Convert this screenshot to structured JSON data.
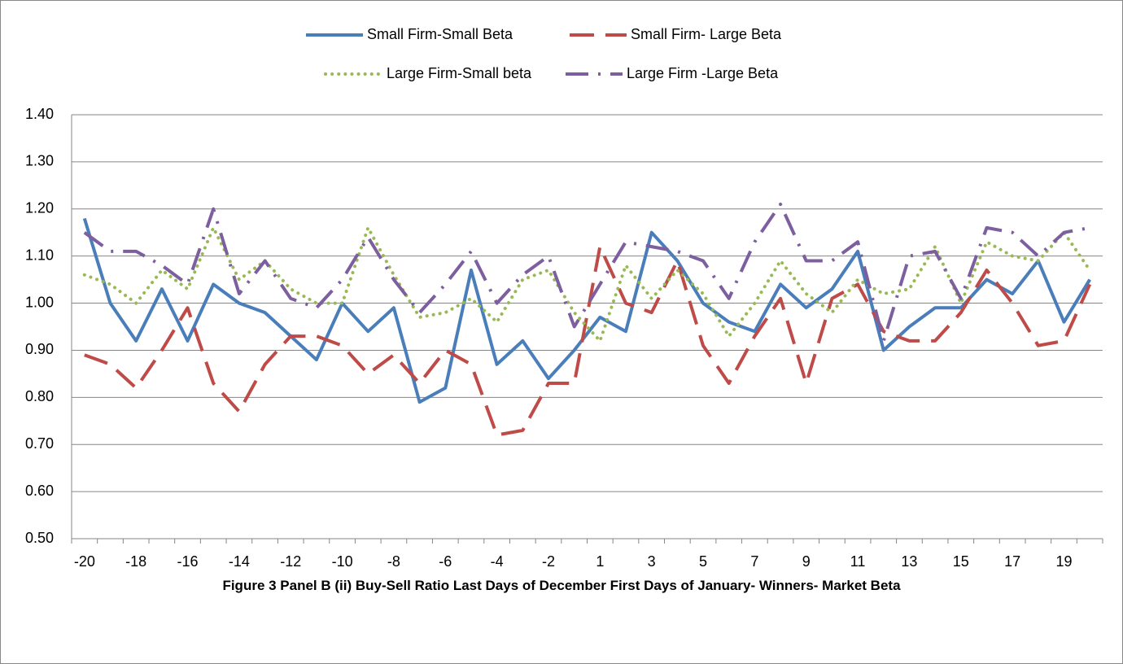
{
  "chart_data": {
    "type": "line",
    "title": "Figure 3 Panel B (ii) Buy-Sell Ratio Last Days of December First Days of January- Winners- Market Beta",
    "categories": [
      -20,
      null,
      -18,
      null,
      -16,
      null,
      -14,
      null,
      -12,
      null,
      -10,
      null,
      -8,
      null,
      -6,
      null,
      -4,
      null,
      -2,
      null,
      1,
      null,
      3,
      null,
      5,
      null,
      7,
      null,
      9,
      null,
      11,
      null,
      13,
      null,
      15,
      null,
      17,
      null,
      19,
      null
    ],
    "series": [
      {
        "name": "Small Firm-Small Beta",
        "color": "#4a7ebb",
        "style": "solid",
        "values": [
          1.18,
          1.0,
          0.92,
          1.03,
          0.92,
          1.04,
          1.0,
          0.98,
          0.93,
          0.88,
          1.0,
          0.94,
          0.99,
          0.79,
          0.82,
          1.07,
          0.87,
          0.92,
          0.84,
          0.9,
          0.97,
          0.94,
          1.15,
          1.09,
          1.0,
          0.96,
          0.94,
          1.04,
          0.99,
          1.03,
          1.11,
          0.9,
          0.95,
          0.99,
          0.99,
          1.05,
          1.02,
          1.09,
          0.96,
          1.05
        ]
      },
      {
        "name": "Small Firm- Large Beta",
        "color": "#be4b48",
        "style": "dashed",
        "values": [
          0.89,
          0.87,
          0.82,
          0.9,
          0.99,
          0.83,
          0.77,
          0.87,
          0.93,
          0.93,
          0.91,
          0.85,
          0.89,
          0.83,
          0.9,
          0.87,
          0.72,
          0.73,
          0.83,
          0.83,
          1.12,
          1.0,
          0.98,
          1.09,
          0.91,
          0.83,
          0.93,
          1.01,
          0.83,
          1.01,
          1.04,
          0.94,
          0.92,
          0.92,
          0.98,
          1.07,
          1.0,
          0.91,
          0.92,
          1.04
        ]
      },
      {
        "name": "Large Firm-Small beta",
        "color": "#98b954",
        "style": "dotted",
        "values": [
          1.06,
          1.04,
          1.0,
          1.07,
          1.03,
          1.16,
          1.05,
          1.09,
          1.03,
          1.0,
          1.0,
          1.16,
          1.06,
          0.97,
          0.98,
          1.01,
          0.96,
          1.05,
          1.07,
          0.98,
          0.92,
          1.08,
          1.01,
          1.07,
          1.02,
          0.93,
          1.0,
          1.09,
          1.02,
          0.98,
          1.05,
          1.02,
          1.03,
          1.12,
          1.0,
          1.13,
          1.1,
          1.09,
          1.15,
          1.07
        ]
      },
      {
        "name": "Large Firm -Large Beta",
        "color": "#7d5fa0",
        "style": "dashdot",
        "values": [
          1.15,
          1.11,
          1.11,
          1.08,
          1.04,
          1.2,
          1.02,
          1.09,
          1.01,
          0.99,
          1.05,
          1.14,
          1.05,
          0.98,
          1.04,
          1.11,
          1.0,
          1.06,
          1.1,
          0.95,
          1.04,
          1.13,
          1.12,
          1.11,
          1.09,
          1.01,
          1.13,
          1.21,
          1.09,
          1.09,
          1.13,
          0.92,
          1.1,
          1.11,
          1.01,
          1.16,
          1.15,
          1.1,
          1.15,
          1.16
        ]
      }
    ],
    "ylim": [
      0.5,
      1.4
    ],
    "yticks": [
      {
        "value": 0.5,
        "label": "0.50"
      },
      {
        "value": 0.6,
        "label": "0.60"
      },
      {
        "value": 0.7,
        "label": "0.70"
      },
      {
        "value": 0.8,
        "label": "0.80"
      },
      {
        "value": 0.9,
        "label": "0.90"
      },
      {
        "value": 1.0,
        "label": "1.00"
      },
      {
        "value": 1.1,
        "label": "1.10"
      },
      {
        "value": 1.2,
        "label": "1.20"
      },
      {
        "value": 1.3,
        "label": "1.30"
      },
      {
        "value": 1.4,
        "label": "1.40"
      }
    ],
    "grid": true,
    "legend": "top"
  }
}
